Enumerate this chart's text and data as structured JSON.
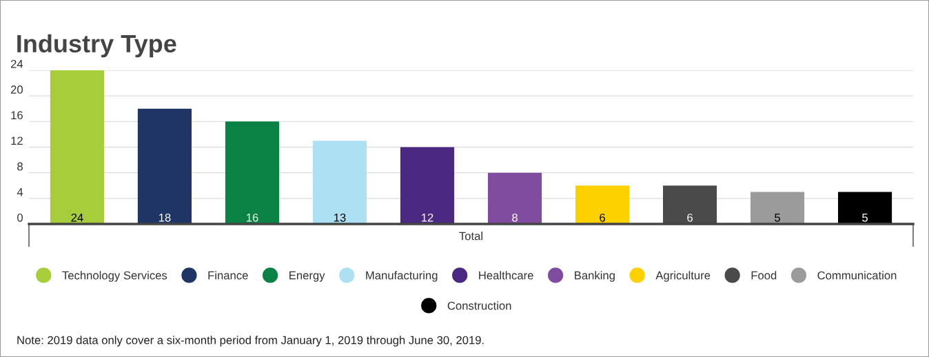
{
  "chart_data": {
    "type": "bar",
    "title": "Industry Type",
    "categories": [
      "Total"
    ],
    "series": [
      {
        "name": "Technology Services",
        "color": "#a8cd3a",
        "values": [
          24
        ]
      },
      {
        "name": "Finance",
        "color": "#1f3566",
        "values": [
          18
        ]
      },
      {
        "name": "Energy",
        "color": "#0a8243",
        "values": [
          16
        ]
      },
      {
        "name": "Manufacturing",
        "color": "#aee0f4",
        "values": [
          13
        ]
      },
      {
        "name": "Healthcare",
        "color": "#4b2882",
        "values": [
          12
        ]
      },
      {
        "name": "Banking",
        "color": "#7f4c9f",
        "values": [
          8
        ]
      },
      {
        "name": "Agriculture",
        "color": "#fdd100",
        "values": [
          6
        ]
      },
      {
        "name": "Food",
        "color": "#4a4a4a",
        "values": [
          6
        ]
      },
      {
        "name": "Communication",
        "color": "#9b9b9b",
        "values": [
          5
        ]
      },
      {
        "name": "Construction",
        "color": "#000000",
        "values": [
          5
        ]
      }
    ],
    "ylim": [
      0,
      24
    ],
    "yticks": [
      0,
      4,
      8,
      12,
      16,
      20,
      24
    ],
    "grid": "y",
    "legend": "bottom",
    "data_labels": true,
    "annotations": [
      "Note: 2019 data only cover a six-month period from January 1, 2019 through June 30, 2019."
    ]
  }
}
